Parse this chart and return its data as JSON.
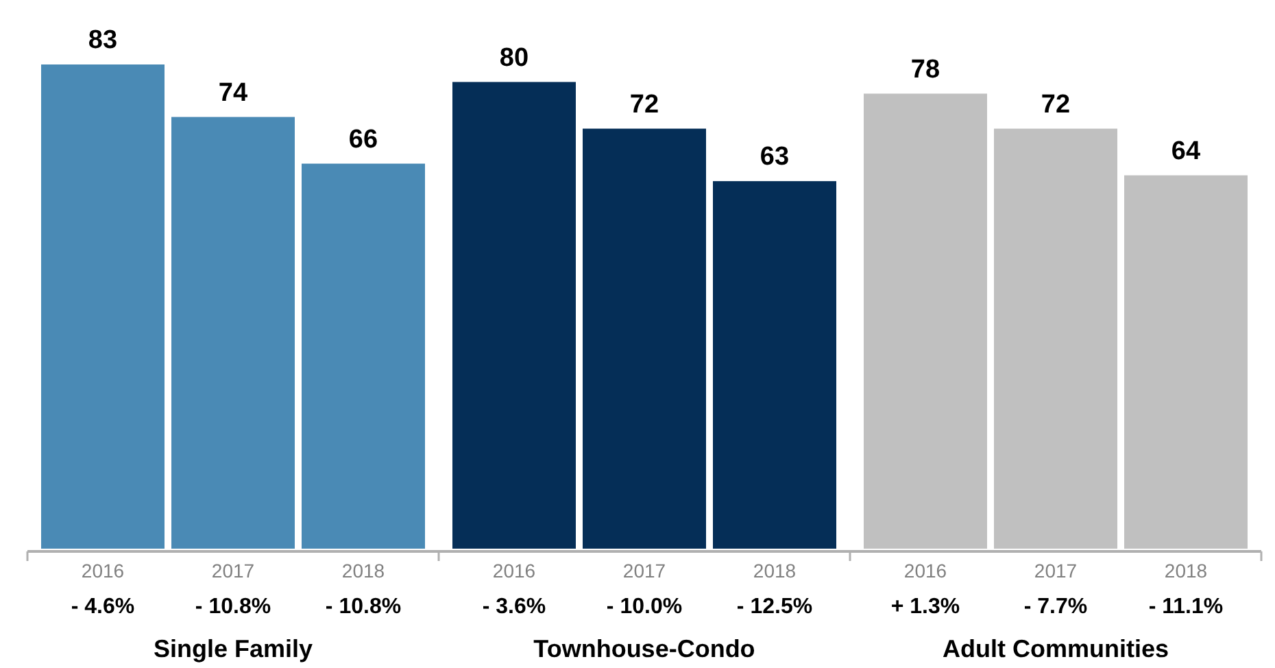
{
  "chart_data": {
    "type": "bar",
    "categories": [
      "2016",
      "2017",
      "2018",
      "2016",
      "2017",
      "2018",
      "2016",
      "2017",
      "2018"
    ],
    "values": [
      83,
      74,
      66,
      80,
      72,
      63,
      78,
      72,
      64
    ],
    "colors": [
      "#4a8ab5",
      "#4a8ab5",
      "#4a8ab5",
      "#052e57",
      "#052e57",
      "#052e57",
      "#c0c0c0",
      "#c0c0c0",
      "#c0c0c0"
    ],
    "data_labels": true,
    "annotations": [
      "- 4.6%",
      "- 10.8%",
      "- 10.8%",
      "- 3.6%",
      "- 10.0%",
      "- 12.5%",
      "+ 1.3%",
      "- 7.7%",
      "- 11.1%",
      "Single Family",
      "Townhouse-Condo",
      "Adult Communities"
    ]
  }
}
